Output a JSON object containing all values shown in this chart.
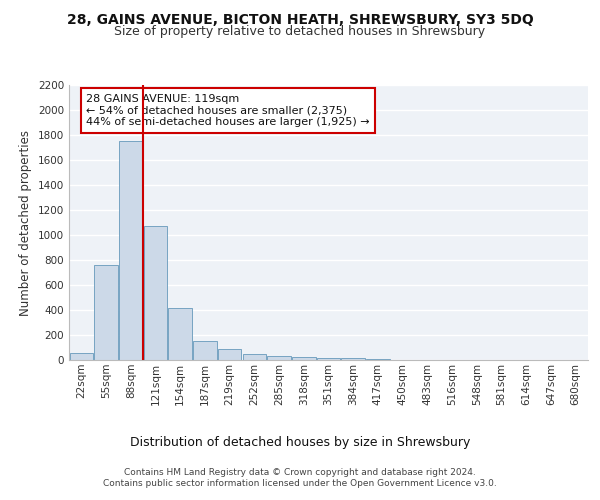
{
  "title1": "28, GAINS AVENUE, BICTON HEATH, SHREWSBURY, SY3 5DQ",
  "title2": "Size of property relative to detached houses in Shrewsbury",
  "xlabel": "Distribution of detached houses by size in Shrewsbury",
  "ylabel": "Number of detached properties",
  "bin_labels": [
    "22sqm",
    "55sqm",
    "88sqm",
    "121sqm",
    "154sqm",
    "187sqm",
    "219sqm",
    "252sqm",
    "285sqm",
    "318sqm",
    "351sqm",
    "384sqm",
    "417sqm",
    "450sqm",
    "483sqm",
    "516sqm",
    "548sqm",
    "581sqm",
    "614sqm",
    "647sqm",
    "680sqm"
  ],
  "bar_values": [
    60,
    760,
    1750,
    1070,
    420,
    155,
    85,
    45,
    35,
    25,
    15,
    15,
    5,
    0,
    0,
    0,
    0,
    0,
    0,
    0,
    0
  ],
  "bar_color": "#ccd9e8",
  "bar_edge_color": "#6699bb",
  "vline_x": 2.5,
  "vline_color": "#cc0000",
  "annotation_text": "28 GAINS AVENUE: 119sqm\n← 54% of detached houses are smaller (2,375)\n44% of semi-detached houses are larger (1,925) →",
  "annotation_box_color": "white",
  "annotation_box_edge": "#cc0000",
  "ylim": [
    0,
    2200
  ],
  "yticks": [
    0,
    200,
    400,
    600,
    800,
    1000,
    1200,
    1400,
    1600,
    1800,
    2000,
    2200
  ],
  "footer": "Contains HM Land Registry data © Crown copyright and database right 2024.\nContains public sector information licensed under the Open Government Licence v3.0.",
  "bg_color": "#eef2f7",
  "grid_color": "white",
  "title_fontsize": 10,
  "subtitle_fontsize": 9,
  "axis_label_fontsize": 8.5,
  "tick_fontsize": 7.5,
  "annotation_fontsize": 8,
  "footer_fontsize": 6.5
}
